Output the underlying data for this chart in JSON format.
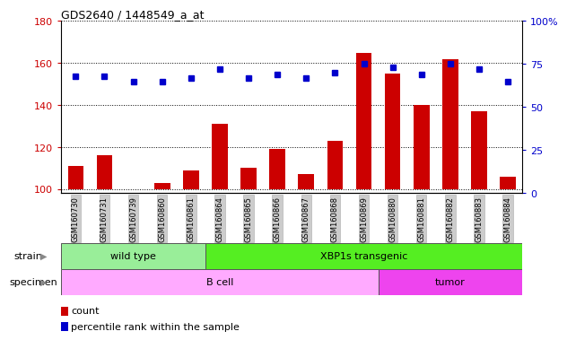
{
  "title": "GDS2640 / 1448549_a_at",
  "samples": [
    "GSM160730",
    "GSM160731",
    "GSM160739",
    "GSM160860",
    "GSM160861",
    "GSM160864",
    "GSM160865",
    "GSM160866",
    "GSM160867",
    "GSM160868",
    "GSM160869",
    "GSM160880",
    "GSM160881",
    "GSM160882",
    "GSM160883",
    "GSM160884"
  ],
  "counts": [
    111,
    116,
    100,
    103,
    109,
    131,
    110,
    119,
    107,
    123,
    165,
    155,
    140,
    162,
    137,
    106
  ],
  "percentile_ranks": [
    68,
    68,
    65,
    65,
    67,
    72,
    67,
    69,
    67,
    70,
    75,
    73,
    69,
    75,
    72,
    65
  ],
  "ylim_left": [
    98,
    180
  ],
  "ylim_right": [
    0,
    100
  ],
  "yticks_left": [
    100,
    120,
    140,
    160,
    180
  ],
  "yticks_right": [
    0,
    25,
    50,
    75,
    100
  ],
  "ytick_labels_right": [
    "0",
    "25",
    "50",
    "75",
    "100%"
  ],
  "bar_color": "#cc0000",
  "dot_color": "#0000cc",
  "strain_groups": [
    {
      "label": "wild type",
      "start": 0,
      "end": 5,
      "color": "#99ee99"
    },
    {
      "label": "XBP1s transgenic",
      "start": 5,
      "end": 16,
      "color": "#55ee22"
    }
  ],
  "specimen_groups": [
    {
      "label": "B cell",
      "start": 0,
      "end": 11,
      "color": "#ffaaff"
    },
    {
      "label": "tumor",
      "start": 11,
      "end": 16,
      "color": "#ee44ee"
    }
  ],
  "strain_label": "strain",
  "specimen_label": "specimen",
  "legend_count_label": "count",
  "legend_pct_label": "percentile rank within the sample",
  "background_color": "#ffffff",
  "plot_bg_color": "#ffffff",
  "tick_bg_color": "#cccccc"
}
